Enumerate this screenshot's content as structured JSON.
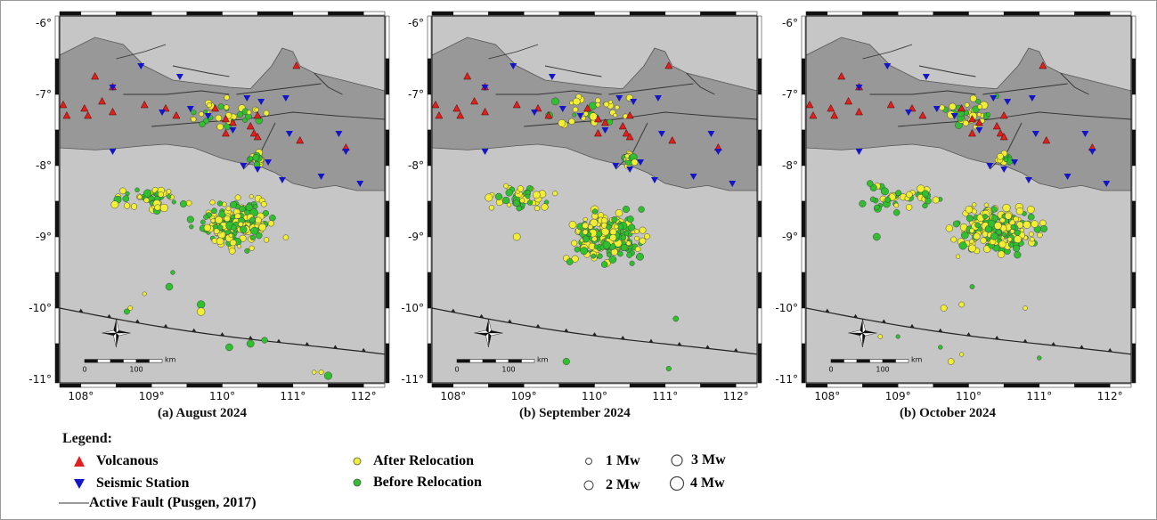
{
  "panels": [
    {
      "caption": "(a) August 2024"
    },
    {
      "caption": "(b) September 2024"
    },
    {
      "caption": "(b) October 2024"
    }
  ],
  "axes": {
    "lon_ticks": [
      "108°",
      "109°",
      "110°",
      "111°",
      "112°"
    ],
    "lat_ticks": [
      "-6°",
      "-7°",
      "-8°",
      "-9°",
      "-10°",
      "-11°"
    ]
  },
  "scale_bar": {
    "start": "0",
    "end": "100",
    "unit": "km"
  },
  "legend": {
    "title": "Legend:",
    "volcano": "Volcanous",
    "station": "Seismic Station",
    "fault": "Active Fault (Pusgen, 2017)",
    "after": "After Relocation",
    "before": "Before Relocation",
    "mw1": "1 Mw",
    "mw2": "2 Mw",
    "mw3": "3 Mw",
    "mw4": "4 Mw"
  },
  "colors": {
    "sea": "#c6c6c6",
    "land": "#989898",
    "volcano": "#e0201c",
    "station": "#1515c8",
    "after": "#f2ee33",
    "before": "#2fbf2f"
  },
  "icons": [
    "north-arrow-icon",
    "volcano-triangle-icon",
    "station-triangle-icon"
  ]
}
